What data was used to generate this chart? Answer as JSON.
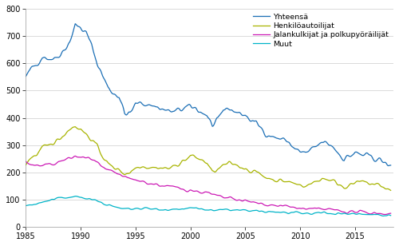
{
  "title": "",
  "ylabel": "",
  "xlabel": "",
  "xlim": [
    1985.0,
    2018.5
  ],
  "ylim": [
    0,
    800
  ],
  "yticks": [
    0,
    100,
    200,
    300,
    400,
    500,
    600,
    700,
    800
  ],
  "xticks": [
    1985,
    1990,
    1995,
    2000,
    2005,
    2010,
    2015
  ],
  "legend": [
    "Yhteensä",
    "Henkilöautoilijat",
    "Jalankulkijat ja polkupyöräilijät",
    "Muut"
  ],
  "colors": [
    "#1a6eb5",
    "#a8b400",
    "#cc1ab5",
    "#00b4c8"
  ],
  "linewidth": 0.9,
  "background": "#ffffff",
  "grid_color": "#cccccc"
}
